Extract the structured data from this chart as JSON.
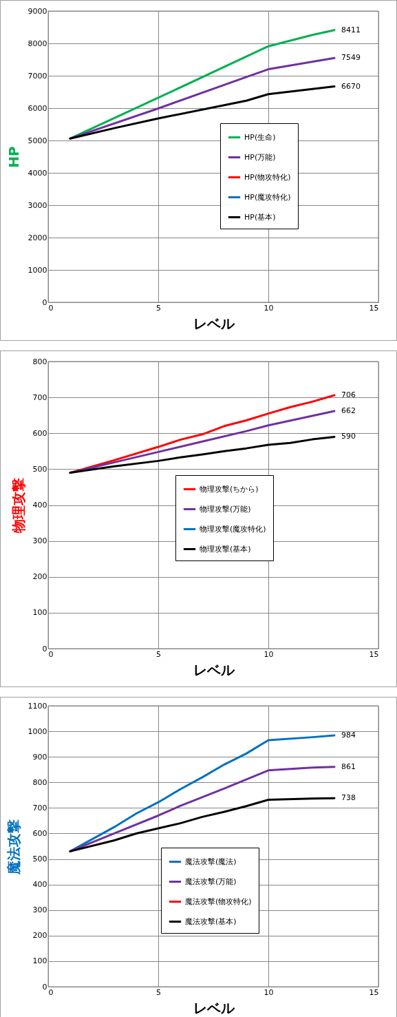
{
  "chart_data": [
    {
      "type": "line",
      "xlabel": "レベル",
      "ylabel": "HP",
      "xlim": [
        0,
        15
      ],
      "xticks": [
        0,
        5,
        10,
        15
      ],
      "ylim": [
        0,
        9000
      ],
      "yticks": [
        0,
        1000,
        2000,
        3000,
        4000,
        5000,
        6000,
        7000,
        8000,
        9000
      ],
      "grid": true,
      "legend": "right",
      "series": [
        {
          "name": "HP(生命)",
          "color": "#00b050",
          "x": [
            1,
            5,
            10,
            12,
            13
          ],
          "values": [
            5060,
            6320,
            7910,
            8260,
            8411
          ],
          "value_labels": [
            null,
            null,
            null,
            null,
            "8411"
          ]
        },
        {
          "name": "HP(万能)",
          "color": "#7030a0",
          "x": [
            1,
            5,
            9,
            10,
            13
          ],
          "values": [
            5060,
            5990,
            6960,
            7200,
            7549
          ],
          "value_labels": [
            null,
            null,
            null,
            null,
            "7549"
          ]
        },
        {
          "name": "HP(物攻特化)",
          "color": "#ff0000",
          "values": [
            null
          ]
        },
        {
          "name": "HP(魔攻特化)",
          "color": "#0070c0",
          "values": [
            null
          ]
        },
        {
          "name": "HP(基本)",
          "color": "#000000",
          "x": [
            1,
            3,
            5,
            9,
            10,
            13
          ],
          "values": [
            5060,
            5380,
            5680,
            6230,
            6430,
            6670
          ],
          "value_labels": [
            null,
            null,
            null,
            null,
            null,
            "6670"
          ]
        }
      ]
    },
    {
      "type": "line",
      "xlabel": "レベル",
      "ylabel": "物理攻撃",
      "xlim": [
        0,
        15
      ],
      "xticks": [
        0,
        5,
        10,
        15
      ],
      "ylim": [
        0,
        800
      ],
      "yticks": [
        0,
        100,
        200,
        300,
        400,
        500,
        600,
        700,
        800
      ],
      "grid": true,
      "legend": "right",
      "series": [
        {
          "name": "物理攻撃(ちから)",
          "color": "#ff0000",
          "x": [
            1,
            3,
            5,
            6,
            7,
            8,
            9,
            10,
            11,
            12,
            13
          ],
          "values": [
            490,
            525,
            562,
            582,
            597,
            620,
            636,
            655,
            673,
            688,
            706
          ],
          "value_labels": [
            null,
            null,
            null,
            null,
            null,
            null,
            null,
            null,
            null,
            null,
            "706"
          ]
        },
        {
          "name": "物理攻撃(万能)",
          "color": "#7030a0",
          "x": [
            1,
            5,
            7,
            9,
            10,
            13
          ],
          "values": [
            490,
            548,
            577,
            606,
            622,
            662
          ],
          "value_labels": [
            null,
            null,
            null,
            null,
            null,
            "662"
          ]
        },
        {
          "name": "物理攻撃(魔攻特化)",
          "color": "#0070c0",
          "values": [
            null
          ]
        },
        {
          "name": "物理攻撃(基本)",
          "color": "#000000",
          "x": [
            1,
            3,
            5,
            6,
            7,
            8,
            9,
            10,
            11,
            12,
            13
          ],
          "values": [
            490,
            508,
            523,
            533,
            541,
            550,
            558,
            568,
            573,
            583,
            590
          ],
          "value_labels": [
            null,
            null,
            null,
            null,
            null,
            null,
            null,
            null,
            null,
            null,
            "590"
          ]
        }
      ]
    },
    {
      "type": "line",
      "xlabel": "レベル",
      "ylabel": "魔法攻撃",
      "xlim": [
        0,
        15
      ],
      "xticks": [
        0,
        5,
        10,
        15
      ],
      "ylim": [
        0,
        1100
      ],
      "yticks": [
        0,
        100,
        200,
        300,
        400,
        500,
        600,
        700,
        800,
        900,
        1000,
        1100
      ],
      "grid": true,
      "legend": "right",
      "series": [
        {
          "name": "魔法攻撃(魔法)",
          "color": "#0070c0",
          "x": [
            1,
            3,
            4,
            5,
            6,
            7,
            8,
            9,
            10,
            12,
            13
          ],
          "values": [
            530,
            625,
            678,
            722,
            773,
            820,
            870,
            913,
            965,
            977,
            984
          ],
          "value_labels": [
            null,
            null,
            null,
            null,
            null,
            null,
            null,
            null,
            null,
            null,
            "984"
          ]
        },
        {
          "name": "魔法攻撃(万能)",
          "color": "#7030a0",
          "x": [
            1,
            3,
            5,
            6,
            8,
            10,
            12,
            13
          ],
          "values": [
            530,
            600,
            670,
            708,
            776,
            847,
            858,
            861
          ],
          "value_labels": [
            null,
            null,
            null,
            null,
            null,
            null,
            null,
            "861"
          ]
        },
        {
          "name": "魔法攻撃(物攻特化)",
          "color": "#ff0000",
          "values": [
            null
          ]
        },
        {
          "name": "魔法攻撃(基本)",
          "color": "#000000",
          "x": [
            1,
            3,
            4,
            5,
            6,
            7,
            8,
            9,
            10,
            12,
            13
          ],
          "values": [
            530,
            573,
            600,
            620,
            640,
            665,
            685,
            707,
            732,
            737,
            738
          ],
          "value_labels": [
            null,
            null,
            null,
            null,
            null,
            null,
            null,
            null,
            null,
            null,
            "738"
          ]
        }
      ]
    }
  ]
}
